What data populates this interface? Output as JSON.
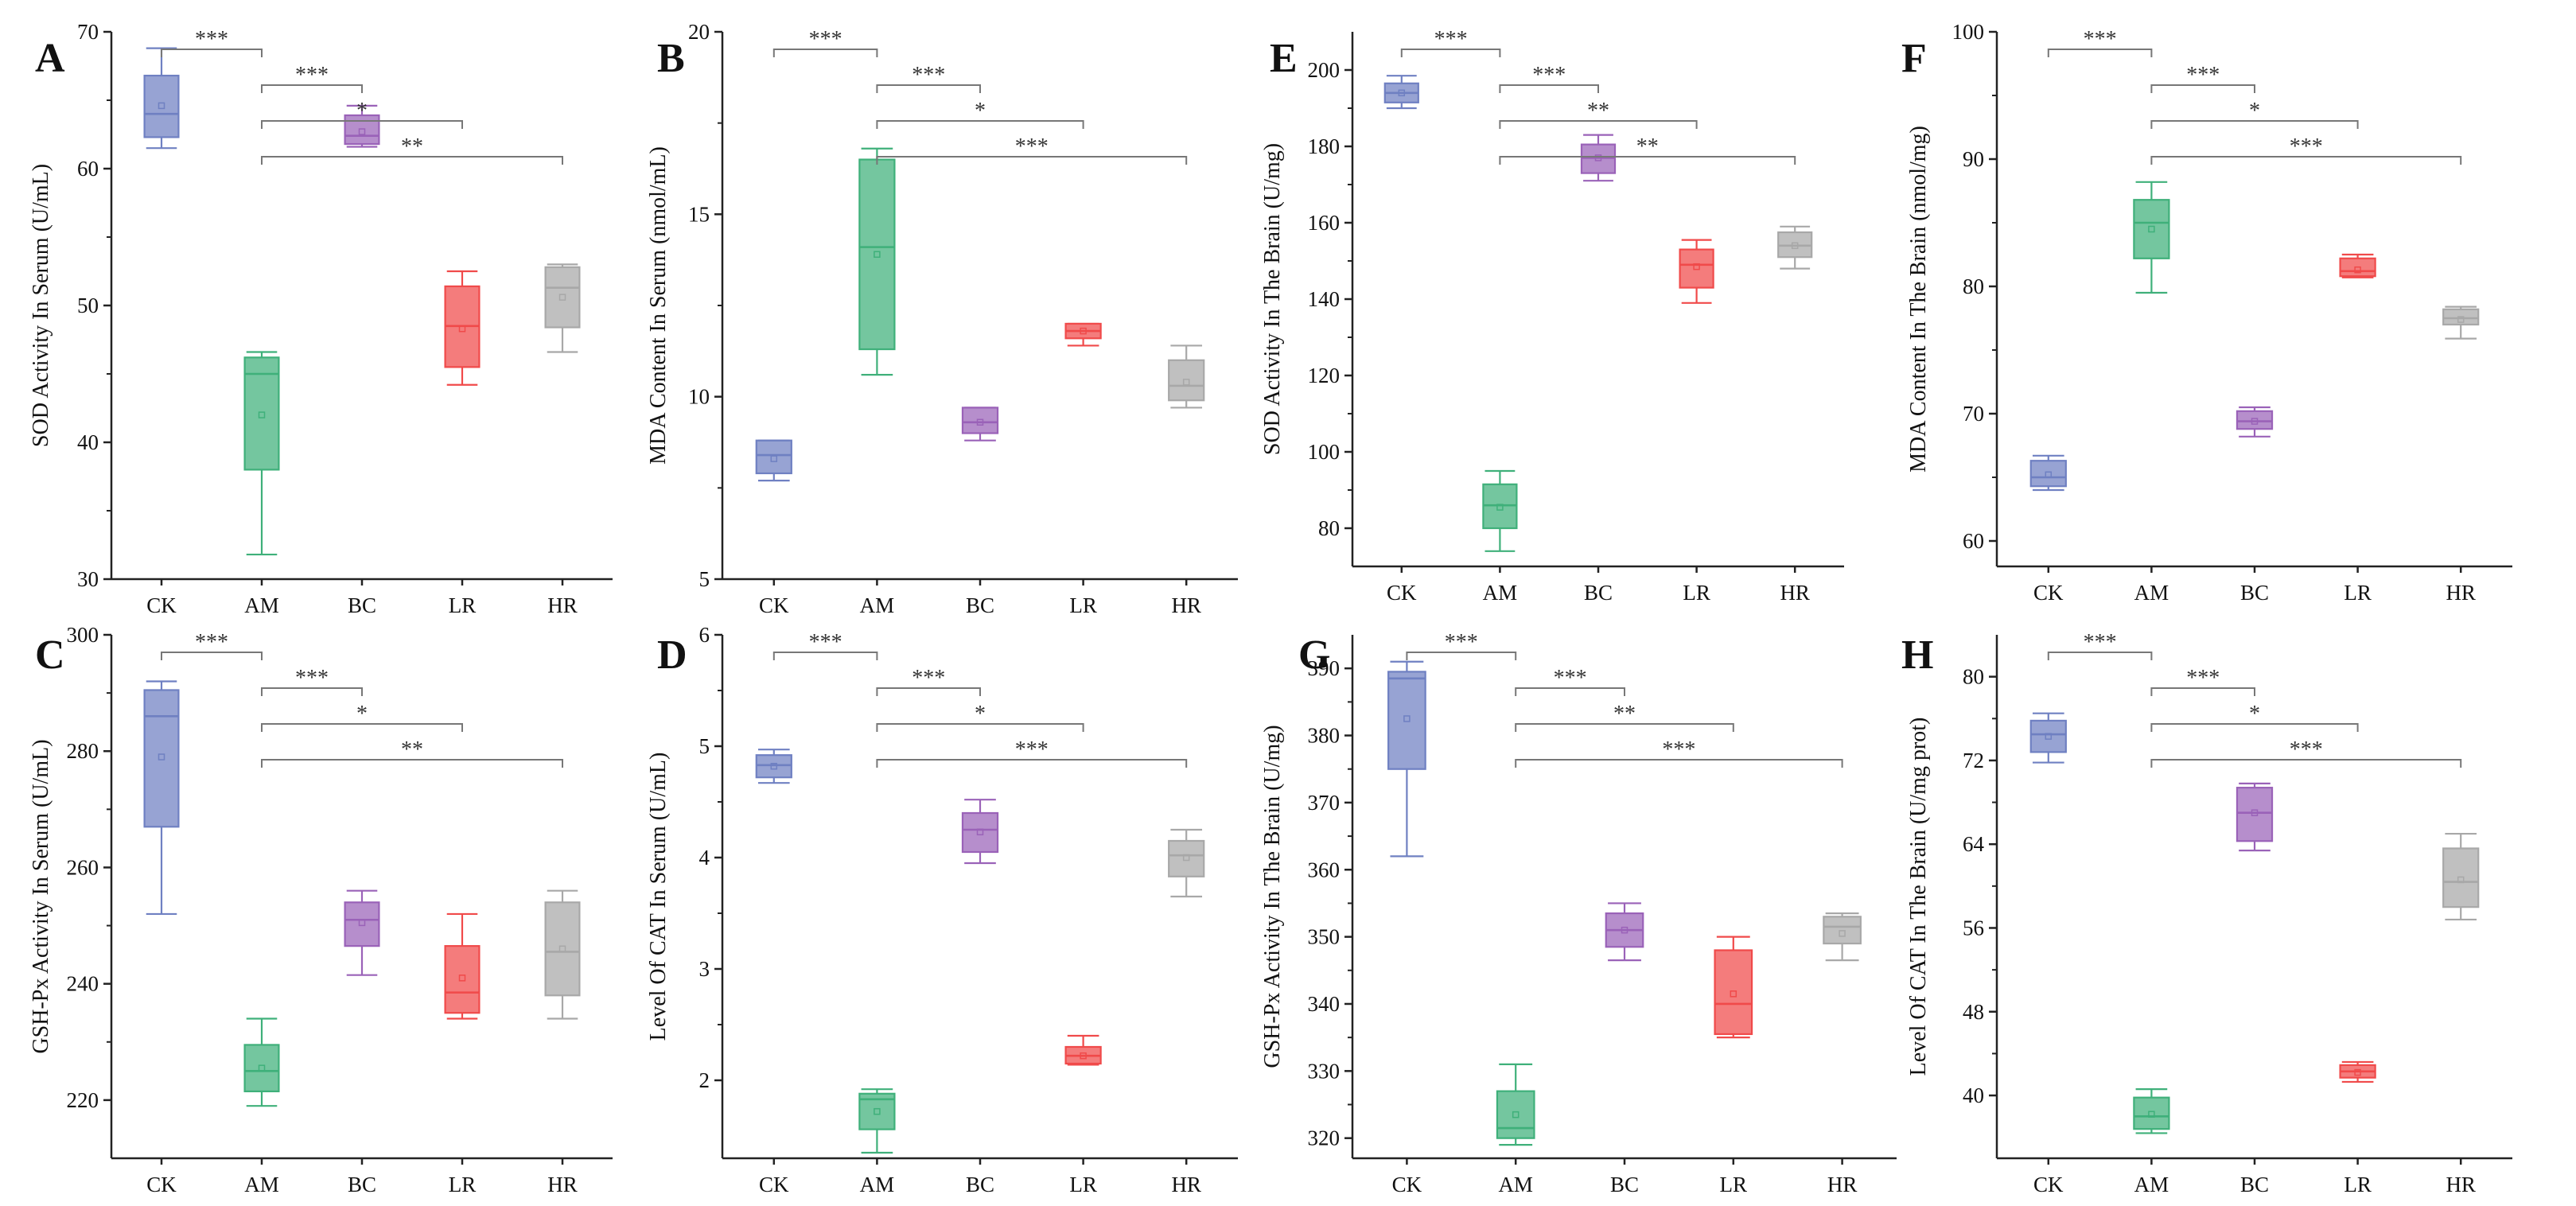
{
  "figure": {
    "colors": {
      "CK": "#6f80c2",
      "AM": "#3fb07a",
      "BC": "#9a62b8",
      "LR": "#f04a4a",
      "HR": "#a8a8a8",
      "axis": "#222222",
      "bracket": "#777777"
    },
    "panels": [
      "A",
      "B",
      "C",
      "D",
      "E",
      "F",
      "G",
      "H"
    ]
  },
  "chart_data": [
    {
      "id": "A",
      "type": "box",
      "title": "",
      "ylabel": "SOD Activity In Serum (U/mL)",
      "ylim": [
        30,
        70
      ],
      "yticks": [
        30,
        40,
        50,
        60,
        70
      ],
      "categories": [
        "CK",
        "AM",
        "BC",
        "LR",
        "HR"
      ],
      "boxes": [
        {
          "group": "CK",
          "min": 61.5,
          "q1": 62.3,
          "median": 64.0,
          "q3": 66.8,
          "max": 68.8,
          "mean": 64.6
        },
        {
          "group": "AM",
          "min": 31.8,
          "q1": 38.0,
          "median": 45.0,
          "q3": 46.2,
          "max": 46.6,
          "mean": 42.0
        },
        {
          "group": "BC",
          "min": 61.6,
          "q1": 61.8,
          "median": 62.4,
          "q3": 63.9,
          "max": 64.6,
          "mean": 62.7
        },
        {
          "group": "LR",
          "min": 44.2,
          "q1": 45.5,
          "median": 48.5,
          "q3": 51.4,
          "max": 52.5,
          "mean": 48.3
        },
        {
          "group": "HR",
          "min": 46.6,
          "q1": 48.4,
          "median": 51.3,
          "q3": 52.8,
          "max": 53.0,
          "mean": 50.6
        }
      ],
      "comparisons": [
        {
          "from": "CK",
          "to": "AM",
          "label": "***"
        },
        {
          "from": "AM",
          "to": "BC",
          "label": "***"
        },
        {
          "from": "AM",
          "to": "LR",
          "label": "*"
        },
        {
          "from": "AM",
          "to": "HR",
          "label": "**"
        }
      ]
    },
    {
      "id": "B",
      "type": "box",
      "title": "",
      "ylabel": "MDA Content In Serum (nmol/mL)",
      "ylim": [
        5,
        20
      ],
      "yticks": [
        5,
        10,
        15,
        20
      ],
      "categories": [
        "CK",
        "AM",
        "BC",
        "LR",
        "HR"
      ],
      "boxes": [
        {
          "group": "CK",
          "min": 7.7,
          "q1": 7.9,
          "median": 8.4,
          "q3": 8.8,
          "max": 8.8,
          "mean": 8.3
        },
        {
          "group": "AM",
          "min": 10.6,
          "q1": 11.3,
          "median": 14.1,
          "q3": 16.5,
          "max": 16.8,
          "mean": 13.9
        },
        {
          "group": "BC",
          "min": 8.8,
          "q1": 9.0,
          "median": 9.3,
          "q3": 9.7,
          "max": 9.7,
          "mean": 9.3
        },
        {
          "group": "LR",
          "min": 11.4,
          "q1": 11.6,
          "median": 11.8,
          "q3": 12.0,
          "max": 12.0,
          "mean": 11.8
        },
        {
          "group": "HR",
          "min": 9.7,
          "q1": 9.9,
          "median": 10.3,
          "q3": 11.0,
          "max": 11.4,
          "mean": 10.4
        }
      ],
      "comparisons": [
        {
          "from": "CK",
          "to": "AM",
          "label": "***"
        },
        {
          "from": "AM",
          "to": "BC",
          "label": "***"
        },
        {
          "from": "AM",
          "to": "LR",
          "label": "*"
        },
        {
          "from": "AM",
          "to": "HR",
          "label": "***"
        }
      ]
    },
    {
      "id": "C",
      "type": "box",
      "title": "",
      "ylabel": "GSH-Px Activity In Serum (U/mL)",
      "ylim": [
        210,
        300
      ],
      "yticks": [
        220,
        240,
        260,
        280,
        300
      ],
      "categories": [
        "CK",
        "AM",
        "BC",
        "LR",
        "HR"
      ],
      "boxes": [
        {
          "group": "CK",
          "min": 252.0,
          "q1": 267.0,
          "median": 286.0,
          "q3": 290.5,
          "max": 292.0,
          "mean": 279.0
        },
        {
          "group": "AM",
          "min": 219.0,
          "q1": 221.5,
          "median": 225.0,
          "q3": 229.5,
          "max": 234.0,
          "mean": 225.5
        },
        {
          "group": "BC",
          "min": 241.5,
          "q1": 246.5,
          "median": 251.0,
          "q3": 254.0,
          "max": 256.0,
          "mean": 250.5
        },
        {
          "group": "LR",
          "min": 234.0,
          "q1": 235.0,
          "median": 238.5,
          "q3": 246.5,
          "max": 252.0,
          "mean": 241.0
        },
        {
          "group": "HR",
          "min": 234.0,
          "q1": 238.0,
          "median": 245.5,
          "q3": 254.0,
          "max": 256.0,
          "mean": 246.0
        }
      ],
      "comparisons": [
        {
          "from": "CK",
          "to": "AM",
          "label": "***"
        },
        {
          "from": "AM",
          "to": "BC",
          "label": "***"
        },
        {
          "from": "AM",
          "to": "LR",
          "label": "*"
        },
        {
          "from": "AM",
          "to": "HR",
          "label": "**"
        }
      ]
    },
    {
      "id": "D",
      "type": "box",
      "title": "",
      "ylabel": "Level Of CAT In Serum (U/mL)",
      "ylim": [
        1.3,
        6
      ],
      "yticks": [
        2,
        3,
        4,
        5,
        6
      ],
      "categories": [
        "CK",
        "AM",
        "BC",
        "LR",
        "HR"
      ],
      "boxes": [
        {
          "group": "CK",
          "min": 4.67,
          "q1": 4.72,
          "median": 4.83,
          "q3": 4.92,
          "max": 4.97,
          "mean": 4.82
        },
        {
          "group": "AM",
          "min": 1.35,
          "q1": 1.56,
          "median": 1.83,
          "q3": 1.88,
          "max": 1.92,
          "mean": 1.72
        },
        {
          "group": "BC",
          "min": 3.95,
          "q1": 4.05,
          "median": 4.25,
          "q3": 4.4,
          "max": 4.52,
          "mean": 4.23
        },
        {
          "group": "LR",
          "min": 2.14,
          "q1": 2.15,
          "median": 2.22,
          "q3": 2.3,
          "max": 2.4,
          "mean": 2.22
        },
        {
          "group": "HR",
          "min": 3.65,
          "q1": 3.83,
          "median": 4.02,
          "q3": 4.15,
          "max": 4.25,
          "mean": 4.0
        }
      ],
      "comparisons": [
        {
          "from": "CK",
          "to": "AM",
          "label": "***"
        },
        {
          "from": "AM",
          "to": "BC",
          "label": "***"
        },
        {
          "from": "AM",
          "to": "LR",
          "label": "*"
        },
        {
          "from": "AM",
          "to": "HR",
          "label": "***"
        }
      ]
    },
    {
      "id": "E",
      "type": "box",
      "title": "",
      "ylabel": "SOD Activity In The Brain (U/mg)",
      "ylim": [
        70,
        210
      ],
      "yticks": [
        80,
        100,
        120,
        140,
        160,
        180,
        200
      ],
      "categories": [
        "CK",
        "AM",
        "BC",
        "LR",
        "HR"
      ],
      "boxes": [
        {
          "group": "CK",
          "min": 190.0,
          "q1": 191.5,
          "median": 194.0,
          "q3": 196.5,
          "max": 198.5,
          "mean": 194.0
        },
        {
          "group": "AM",
          "min": 74.0,
          "q1": 80.0,
          "median": 86.0,
          "q3": 91.5,
          "max": 95.0,
          "mean": 85.5
        },
        {
          "group": "BC",
          "min": 171.0,
          "q1": 173.0,
          "median": 177.0,
          "q3": 180.5,
          "max": 183.0,
          "mean": 177.0
        },
        {
          "group": "LR",
          "min": 139.0,
          "q1": 143.0,
          "median": 149.0,
          "q3": 153.0,
          "max": 155.5,
          "mean": 148.5
        },
        {
          "group": "HR",
          "min": 148.0,
          "q1": 151.0,
          "median": 154.0,
          "q3": 157.5,
          "max": 159.0,
          "mean": 154.0
        }
      ],
      "comparisons": [
        {
          "from": "CK",
          "to": "AM",
          "label": "***"
        },
        {
          "from": "AM",
          "to": "BC",
          "label": "***"
        },
        {
          "from": "AM",
          "to": "LR",
          "label": "**"
        },
        {
          "from": "AM",
          "to": "HR",
          "label": "**"
        }
      ]
    },
    {
      "id": "F",
      "type": "box",
      "title": "",
      "ylabel": "MDA Content In The Brain (nmol/mg)",
      "ylim": [
        58,
        100
      ],
      "yticks": [
        60,
        70,
        80,
        90,
        100
      ],
      "categories": [
        "CK",
        "AM",
        "BC",
        "LR",
        "HR"
      ],
      "boxes": [
        {
          "group": "CK",
          "min": 64.0,
          "q1": 64.3,
          "median": 65.0,
          "q3": 66.3,
          "max": 66.7,
          "mean": 65.2
        },
        {
          "group": "AM",
          "min": 79.5,
          "q1": 82.2,
          "median": 85.0,
          "q3": 86.8,
          "max": 88.2,
          "mean": 84.5
        },
        {
          "group": "BC",
          "min": 68.2,
          "q1": 68.8,
          "median": 69.4,
          "q3": 70.2,
          "max": 70.5,
          "mean": 69.4
        },
        {
          "group": "LR",
          "min": 80.7,
          "q1": 80.8,
          "median": 81.2,
          "q3": 82.2,
          "max": 82.5,
          "mean": 81.3
        },
        {
          "group": "HR",
          "min": 75.9,
          "q1": 77.0,
          "median": 77.5,
          "q3": 78.2,
          "max": 78.4,
          "mean": 77.4
        }
      ],
      "comparisons": [
        {
          "from": "CK",
          "to": "AM",
          "label": "***"
        },
        {
          "from": "AM",
          "to": "BC",
          "label": "***"
        },
        {
          "from": "AM",
          "to": "LR",
          "label": "*"
        },
        {
          "from": "AM",
          "to": "HR",
          "label": "***"
        }
      ]
    },
    {
      "id": "G",
      "type": "box",
      "title": "",
      "ylabel": "GSH-Px Activity In The Brain (U/mg)",
      "ylim": [
        317,
        395
      ],
      "yticks": [
        320,
        330,
        340,
        350,
        360,
        370,
        380,
        390
      ],
      "categories": [
        "CK",
        "AM",
        "BC",
        "LR",
        "HR"
      ],
      "boxes": [
        {
          "group": "CK",
          "min": 362.0,
          "q1": 375.0,
          "median": 388.5,
          "q3": 389.5,
          "max": 391.0,
          "mean": 382.5
        },
        {
          "group": "AM",
          "min": 319.0,
          "q1": 320.0,
          "median": 321.5,
          "q3": 327.0,
          "max": 331.0,
          "mean": 323.5
        },
        {
          "group": "BC",
          "min": 346.5,
          "q1": 348.5,
          "median": 351.0,
          "q3": 353.5,
          "max": 355.0,
          "mean": 351.0
        },
        {
          "group": "LR",
          "min": 335.0,
          "q1": 335.5,
          "median": 340.0,
          "q3": 348.0,
          "max": 350.0,
          "mean": 341.5
        },
        {
          "group": "HR",
          "min": 346.5,
          "q1": 349.0,
          "median": 351.5,
          "q3": 353.0,
          "max": 353.5,
          "mean": 350.5
        }
      ],
      "comparisons": [
        {
          "from": "CK",
          "to": "AM",
          "label": "***"
        },
        {
          "from": "AM",
          "to": "BC",
          "label": "***"
        },
        {
          "from": "AM",
          "to": "LR",
          "label": "**"
        },
        {
          "from": "AM",
          "to": "HR",
          "label": "***"
        }
      ]
    },
    {
      "id": "H",
      "type": "box",
      "title": "",
      "ylabel": "Level Of CAT In The Brain (U/mg prot)",
      "ylim": [
        34,
        84
      ],
      "yticks": [
        40,
        48,
        56,
        64,
        72,
        80
      ],
      "categories": [
        "CK",
        "AM",
        "BC",
        "LR",
        "HR"
      ],
      "boxes": [
        {
          "group": "CK",
          "min": 71.8,
          "q1": 72.8,
          "median": 74.5,
          "q3": 75.8,
          "max": 76.5,
          "mean": 74.3
        },
        {
          "group": "AM",
          "min": 36.4,
          "q1": 36.8,
          "median": 38.0,
          "q3": 39.8,
          "max": 40.6,
          "mean": 38.2
        },
        {
          "group": "BC",
          "min": 63.4,
          "q1": 64.3,
          "median": 67.0,
          "q3": 69.4,
          "max": 69.8,
          "mean": 67.0
        },
        {
          "group": "LR",
          "min": 41.3,
          "q1": 41.7,
          "median": 42.3,
          "q3": 42.9,
          "max": 43.2,
          "mean": 42.2
        },
        {
          "group": "HR",
          "min": 56.8,
          "q1": 58.0,
          "median": 60.4,
          "q3": 63.6,
          "max": 65.0,
          "mean": 60.6
        }
      ],
      "comparisons": [
        {
          "from": "CK",
          "to": "AM",
          "label": "***"
        },
        {
          "from": "AM",
          "to": "BC",
          "label": "***"
        },
        {
          "from": "AM",
          "to": "LR",
          "label": "*"
        },
        {
          "from": "AM",
          "to": "HR",
          "label": "***"
        }
      ]
    }
  ]
}
